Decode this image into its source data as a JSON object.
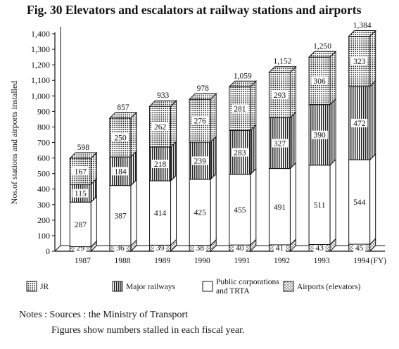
{
  "chart_data": {
    "type": "bar",
    "stacked": true,
    "style": "3d",
    "title": "Fig. 30 Elevators and escalators at railway stations and airports",
    "ylabel": "Nos.of stations and airports installed",
    "xunit": "(FY)",
    "ylim": [
      0,
      1400
    ],
    "yticks": [
      0,
      100,
      200,
      300,
      400,
      500,
      600,
      700,
      800,
      900,
      1000,
      1100,
      1200,
      1300,
      1400
    ],
    "ytick_labels": [
      "0",
      "100",
      "200",
      "300",
      "400",
      "500",
      "600",
      "700",
      "800",
      "900",
      "1,000",
      "1,100",
      "1,200",
      "1,300",
      "1,400"
    ],
    "categories": [
      "1987",
      "1988",
      "1989",
      "1990",
      "1991",
      "1992",
      "1993",
      "1994"
    ],
    "totals": [
      "598",
      "857",
      "933",
      "978",
      "1,059",
      "1,152",
      "1,250",
      "1,384"
    ],
    "legend_position": "bottom",
    "series": [
      {
        "name": "Airports (elevators)",
        "pattern": "dots-light",
        "values": [
          29,
          36,
          39,
          38,
          40,
          41,
          43,
          45
        ]
      },
      {
        "name": "Public corporations and TRTA",
        "pattern": "plain",
        "values": [
          287,
          387,
          414,
          425,
          455,
          491,
          511,
          544
        ]
      },
      {
        "name": "Major railways",
        "pattern": "vertical-lines",
        "values": [
          115,
          184,
          218,
          239,
          283,
          327,
          390,
          472
        ]
      },
      {
        "name": "JR",
        "pattern": "dots-dense",
        "values": [
          167,
          250,
          262,
          276,
          281,
          293,
          306,
          323
        ]
      }
    ],
    "legend": [
      {
        "label": "JR",
        "pattern": "dots-dense"
      },
      {
        "label": "Major railways",
        "pattern": "vertical-lines"
      },
      {
        "label_lines": [
          "Public corporations",
          "and TRTA"
        ],
        "pattern": "plain"
      },
      {
        "label": "Airports (elevators)",
        "pattern": "dots-light"
      }
    ]
  },
  "notes": {
    "line1": "Notes : Sources : the Ministry of Transport",
    "line2": "Figures show numbers stalled in each fiscal year."
  }
}
